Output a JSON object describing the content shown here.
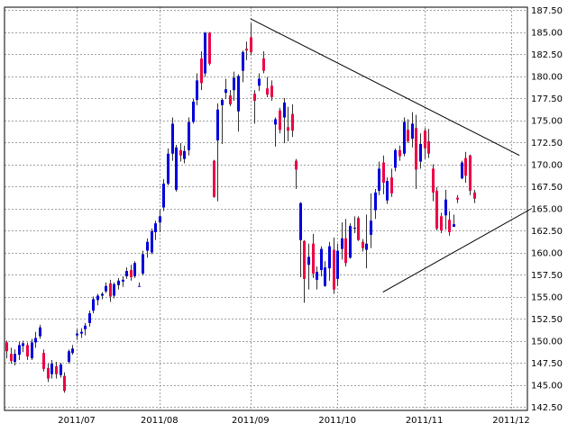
{
  "chart_data": {
    "type": "candlestick",
    "title": "",
    "xlabel": "",
    "ylabel": "",
    "ylim": [
      142.5,
      187.5
    ],
    "y_ticks": [
      "142.50",
      "145.00",
      "147.50",
      "150.00",
      "152.50",
      "155.00",
      "157.50",
      "160.00",
      "162.50",
      "165.00",
      "167.50",
      "170.00",
      "172.50",
      "175.00",
      "177.50",
      "180.00",
      "182.50",
      "185.00",
      "187.50"
    ],
    "x_ticks": [
      {
        "label": "2011/07",
        "index": 17
      },
      {
        "label": "2011/08",
        "index": 37
      },
      {
        "label": "2011/09",
        "index": 59
      },
      {
        "label": "2011/10",
        "index": 80
      },
      {
        "label": "2011/11",
        "index": 101
      },
      {
        "label": "2011/12",
        "index": 122
      }
    ],
    "grid": true,
    "colors": {
      "up": "#0000dd",
      "down": "#ee0044",
      "trendline": "#000000",
      "grid": "#a0a0a0"
    },
    "series": [
      {
        "values": [
          [
            149.8,
            150.0,
            148.0,
            148.8
          ],
          [
            148.5,
            149.2,
            147.4,
            147.7
          ],
          [
            147.6,
            149.0,
            147.2,
            148.5
          ],
          [
            148.4,
            149.9,
            147.8,
            149.5
          ],
          [
            149.4,
            150.0,
            148.7,
            149.7
          ],
          [
            149.5,
            149.8,
            147.8,
            148.2
          ],
          [
            148.0,
            150.2,
            147.8,
            149.8
          ],
          [
            149.8,
            151.0,
            149.2,
            150.3
          ],
          [
            150.5,
            151.8,
            150.2,
            151.5
          ],
          [
            148.6,
            149.0,
            146.5,
            146.8
          ],
          [
            146.9,
            147.4,
            145.3,
            145.7
          ],
          [
            146.2,
            147.8,
            145.7,
            147.4
          ],
          [
            147.1,
            147.6,
            145.7,
            146.2
          ],
          [
            146.1,
            147.5,
            145.8,
            147.3
          ],
          [
            146.0,
            146.4,
            144.1,
            144.3
          ],
          [
            147.6,
            149.0,
            147.4,
            148.8
          ],
          [
            148.6,
            149.5,
            148.4,
            149.1
          ],
          [
            150.6,
            151.3,
            150.1,
            150.8
          ],
          [
            150.8,
            151.4,
            150.3,
            151.0
          ],
          [
            151.3,
            152.0,
            150.6,
            151.7
          ],
          [
            152.0,
            153.4,
            151.6,
            153.1
          ],
          [
            153.4,
            155.0,
            153.1,
            154.7
          ],
          [
            154.6,
            155.3,
            154.0,
            155.1
          ],
          [
            155.1,
            155.5,
            154.7,
            155.3
          ],
          [
            155.6,
            156.6,
            155.4,
            156.2
          ],
          [
            156.5,
            156.9,
            154.4,
            155.0
          ],
          [
            155.1,
            156.6,
            154.8,
            156.4
          ],
          [
            156.3,
            157.1,
            155.8,
            156.8
          ],
          [
            156.7,
            157.3,
            156.1,
            156.9
          ],
          [
            157.3,
            158.3,
            157.0,
            157.9
          ],
          [
            158.0,
            158.6,
            156.8,
            157.2
          ],
          [
            157.3,
            159.0,
            157.1,
            158.8
          ],
          [
            156.2,
            156.6,
            156.2,
            156.2
          ],
          [
            157.6,
            160.2,
            157.4,
            159.8
          ],
          [
            160.2,
            161.6,
            159.4,
            161.2
          ],
          [
            160.0,
            162.7,
            159.8,
            162.4
          ],
          [
            162.3,
            163.6,
            161.4,
            163.3
          ],
          [
            163.4,
            164.9,
            162.3,
            164.1
          ],
          [
            165.1,
            168.3,
            164.7,
            167.8
          ],
          [
            167.8,
            171.8,
            167.6,
            171.2
          ],
          [
            171.2,
            175.3,
            170.4,
            174.6
          ],
          [
            167.1,
            172.2,
            166.9,
            171.9
          ],
          [
            171.6,
            172.4,
            170.3,
            171.0
          ],
          [
            170.6,
            172.1,
            170.1,
            171.5
          ],
          [
            171.6,
            175.3,
            171.0,
            174.8
          ],
          [
            174.8,
            177.4,
            174.6,
            177.1
          ],
          [
            177.3,
            180.3,
            176.7,
            179.5
          ],
          [
            182.0,
            182.8,
            178.4,
            179.2
          ],
          [
            180.3,
            185.0,
            179.9,
            184.9
          ],
          [
            184.9,
            185.0,
            181.2,
            181.4
          ],
          [
            170.4,
            170.5,
            166.2,
            166.3
          ],
          [
            172.7,
            176.9,
            165.8,
            176.2
          ],
          [
            176.7,
            177.5,
            172.3,
            177.3
          ],
          [
            178.1,
            179.7,
            177.4,
            178.5
          ],
          [
            177.8,
            178.4,
            176.6,
            176.8
          ],
          [
            178.4,
            180.5,
            177.2,
            179.8
          ],
          [
            176.0,
            180.2,
            173.7,
            180.0
          ],
          [
            180.6,
            182.9,
            179.3,
            182.7
          ],
          [
            183.1,
            183.9,
            181.8,
            182.9
          ],
          [
            184.4,
            186.0,
            182.4,
            182.7
          ],
          [
            178.0,
            178.4,
            174.6,
            177.2
          ],
          [
            178.9,
            180.3,
            178.3,
            179.7
          ],
          [
            182.0,
            182.8,
            180.3,
            180.6
          ],
          [
            178.6,
            179.9,
            177.6,
            177.9
          ],
          [
            178.9,
            179.5,
            177.2,
            177.6
          ],
          [
            174.5,
            175.3,
            172.0,
            175.1
          ],
          [
            176.1,
            176.4,
            173.5,
            173.9
          ],
          [
            175.3,
            177.5,
            172.4,
            177.0
          ],
          [
            174.2,
            176.5,
            172.6,
            173.8
          ],
          [
            175.7,
            176.8,
            173.1,
            173.8
          ],
          [
            170.4,
            170.6,
            167.2,
            169.4
          ],
          [
            161.4,
            165.7,
            157.2,
            165.6
          ],
          [
            161.3,
            161.4,
            154.3,
            157.0
          ],
          [
            158.6,
            161.0,
            155.8,
            159.5
          ],
          [
            161.0,
            162.1,
            157.1,
            157.6
          ],
          [
            156.9,
            158.4,
            155.8,
            157.8
          ],
          [
            158.0,
            160.7,
            157.3,
            160.4
          ],
          [
            156.2,
            159.0,
            156.1,
            158.3
          ],
          [
            158.2,
            161.2,
            156.8,
            160.7
          ],
          [
            160.3,
            161.7,
            155.3,
            155.8
          ],
          [
            157.0,
            161.0,
            156.2,
            160.2
          ],
          [
            160.4,
            163.4,
            159.2,
            161.6
          ],
          [
            161.6,
            163.8,
            158.4,
            158.8
          ],
          [
            159.4,
            163.3,
            159.3,
            163.0
          ],
          [
            162.8,
            164.1,
            162.2,
            162.8
          ],
          [
            163.9,
            164.1,
            161.3,
            161.4
          ],
          [
            161.2,
            161.5,
            160.1,
            160.5
          ],
          [
            160.3,
            164.3,
            158.2,
            161.0
          ],
          [
            162.0,
            166.7,
            160.5,
            163.6
          ],
          [
            164.8,
            167.2,
            163.8,
            166.8
          ],
          [
            167.0,
            170.3,
            166.5,
            169.5
          ],
          [
            170.2,
            171.0,
            166.6,
            167.9
          ],
          [
            165.9,
            168.5,
            165.5,
            168.1
          ],
          [
            168.5,
            169.5,
            166.3,
            166.7
          ],
          [
            169.6,
            171.8,
            169.2,
            171.6
          ],
          [
            171.6,
            172.1,
            170.4,
            170.9
          ],
          [
            171.2,
            175.3,
            170.9,
            174.8
          ],
          [
            173.9,
            175.1,
            172.4,
            172.6
          ],
          [
            172.9,
            175.9,
            171.9,
            174.6
          ],
          [
            174.1,
            175.6,
            167.2,
            169.4
          ],
          [
            170.3,
            173.5,
            169.5,
            172.3
          ],
          [
            173.8,
            174.1,
            170.6,
            171.8
          ],
          [
            172.6,
            174.0,
            170.7,
            171.2
          ],
          [
            169.5,
            170.0,
            165.8,
            166.8
          ],
          [
            167.0,
            167.4,
            162.5,
            162.7
          ],
          [
            164.1,
            164.5,
            162.2,
            162.5
          ],
          [
            164.2,
            167.1,
            162.6,
            166.0
          ],
          [
            163.7,
            164.7,
            161.9,
            162.3
          ],
          [
            162.9,
            164.3,
            163.1,
            163.2
          ],
          [
            166.2,
            166.5,
            165.6,
            166.0
          ],
          [
            168.4,
            170.4,
            168.3,
            170.2
          ],
          [
            170.7,
            171.4,
            167.9,
            168.7
          ],
          [
            171.0,
            171.1,
            166.5,
            167.0
          ],
          [
            166.8,
            167.1,
            165.6,
            166.1
          ]
        ]
      }
    ],
    "trendlines": [
      {
        "name": "upper",
        "from": {
          "index": 59,
          "value": 186.5
        },
        "to": {
          "index": 124,
          "value": 171.0
        }
      },
      {
        "name": "lower",
        "from": {
          "index": 91,
          "value": 155.5
        },
        "to": {
          "index": 127,
          "value": 165.0
        }
      }
    ]
  }
}
